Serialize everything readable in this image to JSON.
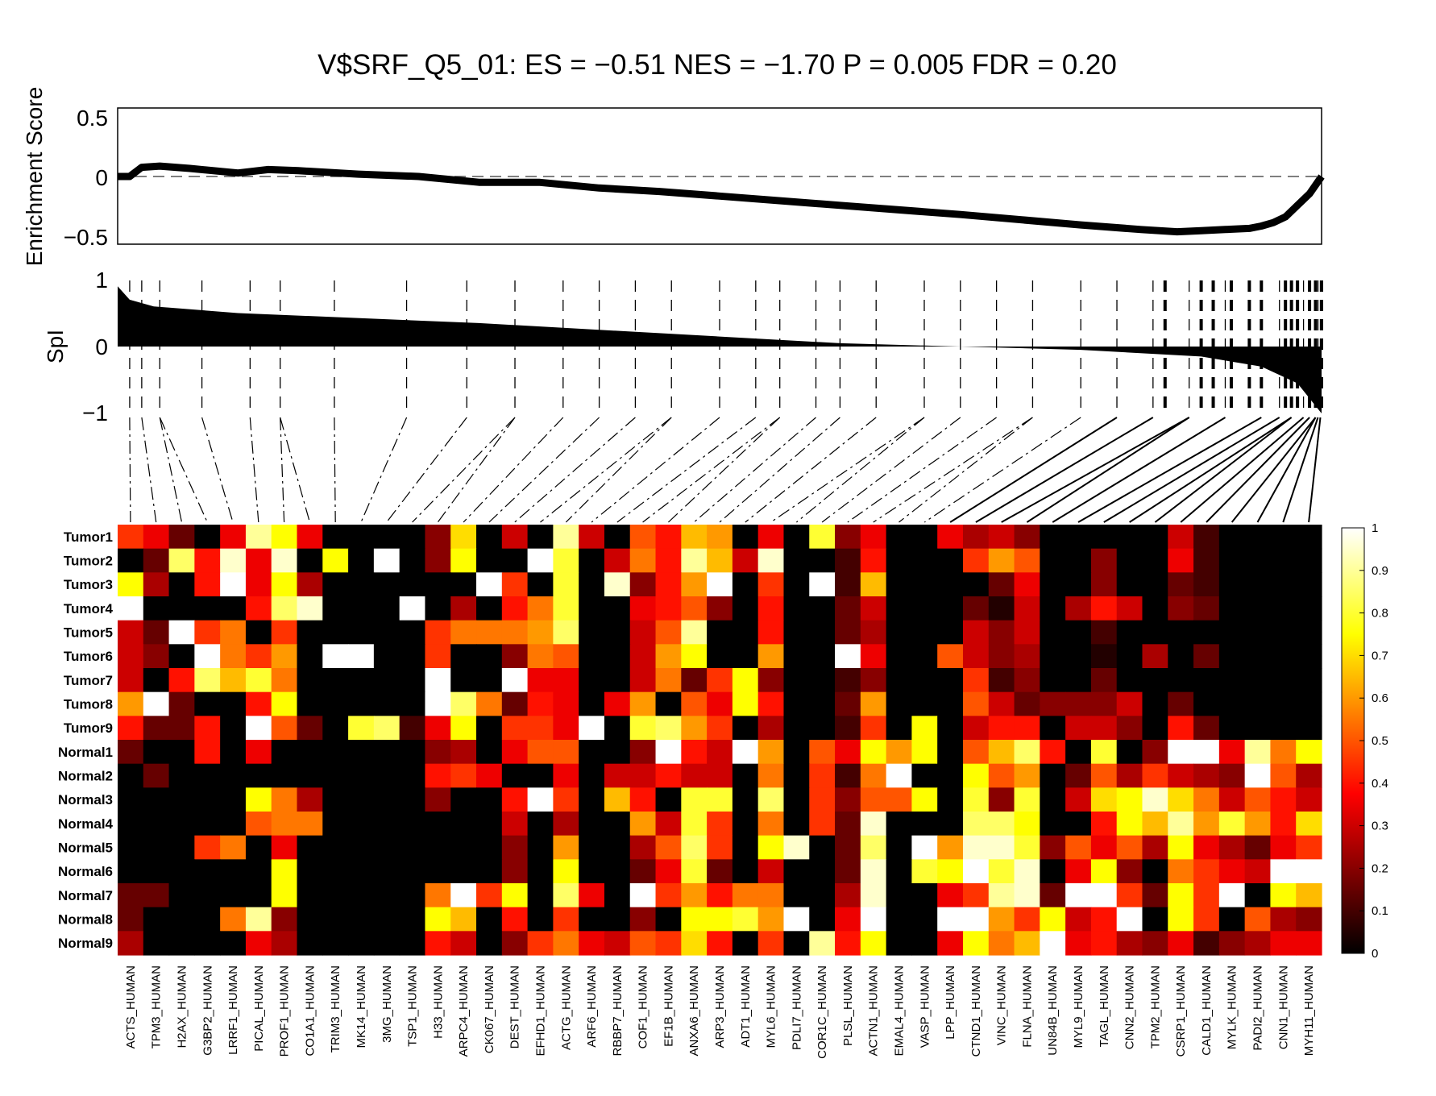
{
  "chart_data": [
    {
      "type": "line",
      "title": "V$SRF_Q5_01:  ES = −0.51 NES = −1.70 P = 0.005 FDR = 0.20",
      "ylabel": "Enrichment Score",
      "ylim": [
        -0.55,
        0.55
      ],
      "yticks": [
        "0.5",
        "0",
        "−0.5"
      ],
      "reference_line": 0,
      "x": [
        0,
        0.01,
        0.02,
        0.035,
        0.06,
        0.1,
        0.125,
        0.15,
        0.2,
        0.25,
        0.3,
        0.35,
        0.4,
        0.45,
        0.5,
        0.6,
        0.7,
        0.8,
        0.85,
        0.88,
        0.9,
        0.92,
        0.94,
        0.95,
        0.96,
        0.97,
        0.98,
        0.99,
        1.0
      ],
      "values": [
        0.0,
        0.0,
        0.08,
        0.09,
        0.07,
        0.03,
        0.06,
        0.05,
        0.02,
        0.0,
        -0.05,
        -0.05,
        -0.1,
        -0.13,
        -0.17,
        -0.25,
        -0.33,
        -0.42,
        -0.46,
        -0.48,
        -0.47,
        -0.46,
        -0.45,
        -0.43,
        -0.4,
        -0.35,
        -0.25,
        -0.15,
        0.0
      ]
    },
    {
      "type": "area",
      "ylabel": "SpI",
      "ylim": [
        -1,
        1
      ],
      "yticks": [
        "1",
        "0",
        "−1"
      ],
      "x": [
        0,
        0.01,
        0.03,
        0.1,
        0.3,
        0.5,
        0.6,
        0.7,
        0.8,
        0.9,
        0.95,
        0.98,
        1.0
      ],
      "values": [
        0.9,
        0.7,
        0.6,
        0.5,
        0.35,
        0.15,
        0.05,
        0.0,
        -0.05,
        -0.15,
        -0.3,
        -0.55,
        -1.0
      ],
      "gene_positions": [
        0.01,
        0.02,
        0.035,
        0.07,
        0.11,
        0.135,
        0.18,
        0.24,
        0.29,
        0.33,
        0.37,
        0.4,
        0.43,
        0.46,
        0.5,
        0.53,
        0.55,
        0.58,
        0.6,
        0.63,
        0.67,
        0.7,
        0.73,
        0.76,
        0.8,
        0.83,
        0.86,
        0.89,
        0.92,
        0.95,
        0.965,
        0.975,
        0.985,
        0.99,
        0.995,
        0.997,
        0.999
      ],
      "strong_positions": [
        0.87,
        0.9,
        0.91,
        0.925,
        0.94,
        0.95,
        0.97,
        0.975,
        0.98,
        0.99,
        0.995,
        1.0
      ]
    },
    {
      "type": "heatmap",
      "rows": [
        "Tumor1",
        "Tumor2",
        "Tumor3",
        "Tumor4",
        "Tumor5",
        "Tumor6",
        "Tumor7",
        "Tumor8",
        "Tumor9",
        "Normal1",
        "Normal2",
        "Normal3",
        "Normal4",
        "Normal5",
        "Normal6",
        "Normal7",
        "Normal8",
        "Normal9"
      ],
      "columns": [
        "ACTS_HUMAN",
        "TPM3_HUMAN",
        "H2AX_HUMAN",
        "G3BP2_HUMAN",
        "LRRF1_HUMAN",
        "PICAL_HUMAN",
        "PROF1_HUMAN",
        "CO1A1_HUMAN",
        "TRIM3_HUMAN",
        "MK14_HUMAN",
        "3MG_HUMAN",
        "TSP1_HUMAN",
        "H33_HUMAN",
        "ARPC4_HUMAN",
        "CK067_HUMAN",
        "DEST_HUMAN",
        "EFHD1_HUMAN",
        "ACTG_HUMAN",
        "ARF6_HUMAN",
        "RBBP7_HUMAN",
        "COF1_HUMAN",
        "EF1B_HUMAN",
        "ANXA6_HUMAN",
        "ARP3_HUMAN",
        "ADT1_HUMAN",
        "MYL6_HUMAN",
        "PDLI7_HUMAN",
        "COR1C_HUMAN",
        "PLSL_HUMAN",
        "ACTN1_HUMAN",
        "EMAL4_HUMAN",
        "VASP_HUMAN",
        "LPP_HUMAN",
        "CTND1_HUMAN",
        "VINC_HUMAN",
        "FLNA_HUMAN",
        "UN84B_HUMAN",
        "MYL9_HUMAN",
        "TAGL_HUMAN",
        "CNN2_HUMAN",
        "TPM2_HUMAN",
        "CSRP1_HUMAN",
        "CALD1_HUMAN",
        "MYLK_HUMAN",
        "PADI2_HUMAN",
        "CNN1_HUMAN",
        "MYH11_HUMAN"
      ],
      "values": [
        [
          0.45,
          0.35,
          0.15,
          0.0,
          0.35,
          0.9,
          0.75,
          0.35,
          0,
          0,
          0,
          0,
          0.2,
          0.7,
          0,
          0.3,
          0.0,
          0.9,
          0.3,
          0.0,
          0.5,
          0.4,
          0.65,
          0.6,
          0.0,
          0.35,
          0.0,
          0.8,
          0.2,
          0.35,
          0.0,
          0.0,
          0.35,
          0.25,
          0.3,
          0.2,
          0,
          0,
          0,
          0,
          0,
          0.3,
          0.1,
          0,
          0,
          0,
          0
        ],
        [
          0.0,
          0.15,
          0.85,
          0.4,
          0.95,
          0.35,
          0.95,
          0.0,
          0.75,
          0.0,
          1.0,
          0.0,
          0.2,
          0.75,
          0.0,
          0.0,
          1.0,
          0.8,
          0.0,
          0.3,
          0.55,
          0.4,
          0.9,
          0.65,
          0.3,
          0.95,
          0.0,
          0.0,
          0.1,
          0.4,
          0,
          0,
          0,
          0.45,
          0.6,
          0.5,
          0,
          0,
          0.2,
          0,
          0,
          0.35,
          0.1,
          0,
          0,
          0,
          0
        ],
        [
          0.75,
          0.25,
          0.0,
          0.4,
          1.0,
          0.35,
          0.75,
          0.25,
          0,
          0,
          0,
          0,
          0.0,
          0.0,
          1.0,
          0.45,
          0.0,
          0.8,
          0.0,
          0.95,
          0.2,
          0.4,
          0.6,
          1.0,
          0.0,
          0.45,
          0.0,
          1.0,
          0.1,
          0.65,
          0,
          0,
          0,
          0.0,
          0.15,
          0.35,
          0,
          0,
          0.2,
          0,
          0,
          0.15,
          0.1,
          0,
          0,
          0,
          0
        ],
        [
          1.0,
          0.0,
          0.0,
          0.0,
          0.0,
          0.4,
          0.85,
          0.95,
          0,
          0,
          0,
          1.0,
          0.0,
          0.25,
          0.0,
          0.4,
          0.55,
          0.8,
          0.0,
          0.0,
          0.35,
          0.4,
          0.5,
          0.2,
          0.0,
          0.4,
          0.0,
          0.0,
          0.15,
          0.3,
          0,
          0,
          0,
          0.15,
          0.05,
          0.3,
          0,
          0.25,
          0.4,
          0.3,
          0,
          0.2,
          0.15,
          0,
          0,
          0,
          0
        ],
        [
          0.3,
          0.15,
          1.0,
          0.45,
          0.55,
          0.0,
          0.45,
          0.0,
          0,
          0,
          0,
          0,
          0.45,
          0.55,
          0.55,
          0.55,
          0.6,
          0.85,
          0.0,
          0.0,
          0.3,
          0.5,
          0.9,
          0.0,
          0.0,
          0.4,
          0.0,
          0.0,
          0.15,
          0.25,
          0,
          0,
          0,
          0.3,
          0.2,
          0.3,
          0,
          0,
          0.1,
          0,
          0,
          0,
          0,
          0,
          0,
          0,
          0
        ],
        [
          0.3,
          0.2,
          0.0,
          1.0,
          0.55,
          0.45,
          0.6,
          0.0,
          1.0,
          1.0,
          0,
          0,
          0.45,
          0.0,
          0.0,
          0.2,
          0.55,
          0.5,
          0.0,
          0.0,
          0.3,
          0.6,
          0.75,
          0.0,
          0.0,
          0.6,
          0.0,
          0.0,
          1.0,
          0.35,
          0,
          0,
          0.5,
          0.3,
          0.2,
          0.25,
          0,
          0,
          0.05,
          0,
          0.25,
          0,
          0.15,
          0,
          0,
          0,
          0
        ],
        [
          0.3,
          0.0,
          0.4,
          0.85,
          0.65,
          0.8,
          0.55,
          0.0,
          0,
          0,
          0,
          0,
          1.0,
          0.0,
          0.0,
          1.0,
          0.35,
          0.35,
          0.0,
          0.0,
          0.3,
          0.55,
          0.15,
          0.45,
          0.75,
          0.2,
          0.0,
          0.0,
          0.1,
          0.2,
          0,
          0,
          0,
          0.45,
          0.1,
          0.2,
          0,
          0,
          0.15,
          0,
          0,
          0,
          0,
          0,
          0,
          0,
          0
        ],
        [
          0.6,
          1.0,
          0.15,
          0.0,
          0.0,
          0.4,
          0.75,
          0.0,
          0,
          0,
          0,
          0,
          1.0,
          0.85,
          0.55,
          0.15,
          0.4,
          0.35,
          0.0,
          0.35,
          0.6,
          0.0,
          0.5,
          0.35,
          0.75,
          0.4,
          0.0,
          0.0,
          0.15,
          0.6,
          0,
          0,
          0,
          0.5,
          0.3,
          0.15,
          0.2,
          0.2,
          0.2,
          0.3,
          0,
          0.15,
          0,
          0,
          0,
          0,
          0
        ],
        [
          0.4,
          0.15,
          0.15,
          0.4,
          0.0,
          1.0,
          0.5,
          0.15,
          0,
          0.8,
          0.85,
          0.1,
          0.35,
          0.75,
          0.0,
          0.45,
          0.45,
          0.35,
          1.0,
          0.0,
          0.8,
          0.85,
          0.6,
          0.45,
          0.0,
          0.25,
          0.0,
          0.0,
          0.1,
          0.45,
          0,
          0.75,
          0,
          0.3,
          0.4,
          0.4,
          0,
          0.3,
          0.3,
          0.2,
          0,
          0.4,
          0.15,
          0,
          0,
          0,
          0
        ],
        [
          0.15,
          0.0,
          0.0,
          0.4,
          0.0,
          0.35,
          0.0,
          0.0,
          0,
          0,
          0,
          0,
          0.2,
          0.25,
          0.0,
          0.35,
          0.5,
          0.5,
          0.0,
          0.0,
          0.2,
          1.0,
          0.4,
          0.3,
          1.0,
          0.6,
          0.0,
          0.5,
          0.35,
          0.75,
          0.6,
          0.75,
          0.0,
          0.5,
          0.65,
          0.85,
          0.4,
          0.0,
          0.8,
          0.0,
          0.2,
          1.0,
          1.0,
          0.35,
          0.9,
          0.55,
          0.75
        ],
        [
          0.0,
          0.15,
          0.0,
          0.0,
          0.0,
          0.0,
          0.0,
          0.0,
          0,
          0,
          0,
          0,
          0.4,
          0.45,
          0.35,
          0.0,
          0.0,
          0.35,
          0.0,
          0.3,
          0.3,
          0.4,
          0.3,
          0.3,
          0.0,
          0.55,
          0.0,
          0.45,
          0.1,
          0.55,
          1.0,
          0.0,
          0.0,
          0.75,
          0.5,
          0.6,
          0.0,
          0.15,
          0.5,
          0.25,
          0.45,
          0.3,
          0.25,
          0.2,
          1.0,
          0.5,
          0.25
        ],
        [
          0.0,
          0.0,
          0.0,
          0.0,
          0.0,
          0.75,
          0.55,
          0.25,
          0,
          0,
          0,
          0,
          0.2,
          0.0,
          0.0,
          0.4,
          1.0,
          0.45,
          0.0,
          0.65,
          0.4,
          0.0,
          0.8,
          0.8,
          0.0,
          0.85,
          0.0,
          0.45,
          0.2,
          0.5,
          0.5,
          0.75,
          0.0,
          0.8,
          0.2,
          0.8,
          0.0,
          0.3,
          0.7,
          0.75,
          0.95,
          0.7,
          0.55,
          0.3,
          0.5,
          0.4,
          0.3
        ],
        [
          0.0,
          0.0,
          0.0,
          0.0,
          0.0,
          0.5,
          0.55,
          0.55,
          0,
          0,
          0,
          0,
          0.0,
          0.0,
          0.0,
          0.3,
          0.0,
          0.25,
          0.0,
          0.0,
          0.6,
          0.3,
          0.8,
          0.45,
          0.0,
          0.55,
          0.0,
          0.45,
          0.15,
          0.95,
          0.0,
          0.0,
          0.0,
          0.85,
          0.85,
          0.75,
          0.0,
          0.0,
          0.4,
          0.75,
          0.65,
          0.9,
          0.6,
          0.8,
          0.6,
          0.4,
          0.7
        ],
        [
          0.0,
          0.0,
          0.0,
          0.45,
          0.55,
          0.0,
          0.35,
          0.0,
          0,
          0,
          0,
          0,
          0.0,
          0.0,
          0.0,
          0.2,
          0.0,
          0.6,
          0.0,
          0.0,
          0.25,
          0.5,
          0.85,
          0.45,
          0.0,
          0.75,
          0.95,
          0.0,
          0.15,
          0.85,
          0.0,
          1.0,
          0.6,
          0.95,
          0.95,
          0.8,
          0.2,
          0.5,
          0.35,
          0.5,
          0.25,
          0.75,
          0.35,
          0.25,
          0.15,
          0.35,
          0.45
        ],
        [
          0.0,
          0.0,
          0.0,
          0.0,
          0.0,
          0.0,
          0.75,
          0.0,
          0,
          0,
          0,
          0,
          0.0,
          0.0,
          0.0,
          0.2,
          0.0,
          0.75,
          0.0,
          0.0,
          0.15,
          0.35,
          0.8,
          0.15,
          0.0,
          0.3,
          0.0,
          0.0,
          0.15,
          0.95,
          0.0,
          0.8,
          0.75,
          1.0,
          0.8,
          0.95,
          0.0,
          0.35,
          0.75,
          0.2,
          0.0,
          0.55,
          0.45,
          0.35,
          0.3,
          1.0,
          1.0
        ],
        [
          0.15,
          0.15,
          0.0,
          0.0,
          0.0,
          0.0,
          0.75,
          0.0,
          0,
          0,
          0,
          0,
          0.55,
          1.0,
          0.45,
          0.75,
          0.0,
          0.85,
          0.35,
          0.0,
          1.0,
          0.45,
          0.6,
          0.4,
          0.55,
          0.55,
          0.0,
          0.0,
          0.25,
          0.95,
          0.0,
          0.0,
          0.35,
          0.45,
          0.9,
          0.95,
          0.15,
          1.0,
          1.0,
          0.45,
          0.15,
          0.75,
          0.45,
          1.0,
          0.0,
          0.75,
          0.65
        ],
        [
          0.15,
          0.0,
          0.0,
          0.0,
          0.55,
          0.9,
          0.2,
          0.0,
          0,
          0,
          0,
          0,
          0.75,
          0.65,
          0.0,
          0.4,
          0.0,
          0.45,
          0.0,
          0.0,
          0.2,
          0.0,
          0.75,
          0.75,
          0.8,
          0.6,
          1.0,
          0.0,
          0.35,
          1.0,
          0.0,
          0.0,
          1.0,
          1.0,
          0.6,
          0.45,
          0.75,
          0.3,
          0.4,
          1.0,
          0.0,
          0.75,
          0.45,
          0.0,
          0.5,
          0.25,
          0.2
        ],
        [
          0.25,
          0.0,
          0.0,
          0.0,
          0.0,
          0.35,
          0.25,
          0.0,
          0,
          0,
          0,
          0,
          0.4,
          0.3,
          0.0,
          0.2,
          0.45,
          0.55,
          0.35,
          0.3,
          0.5,
          0.45,
          0.7,
          0.4,
          0.0,
          0.45,
          0.0,
          0.9,
          0.4,
          0.75,
          0.0,
          0.0,
          0.35,
          0.75,
          0.55,
          0.65,
          1.0,
          0.35,
          0.4,
          0.25,
          0.2,
          0.35,
          0.1,
          0.2,
          0.25,
          0.35,
          0.35
        ]
      ],
      "colorbar": {
        "range": [
          0,
          1
        ],
        "ticks": [
          "0",
          "0.1",
          "0.2",
          "0.3",
          "0.4",
          "0.5",
          "0.6",
          "0.7",
          "0.8",
          "0.9",
          "1"
        ],
        "colormap": "hot"
      }
    }
  ]
}
